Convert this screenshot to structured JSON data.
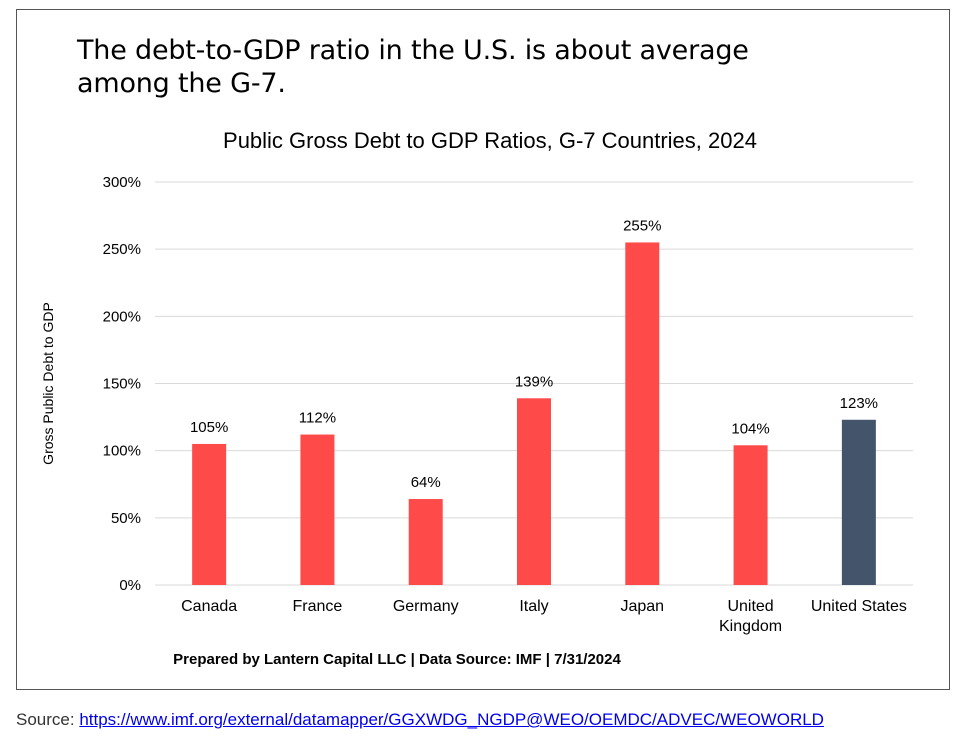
{
  "headline": "The debt-to-GDP ratio in the U.S. is about average among the G-7.",
  "footer": "Prepared by Lantern Capital LLC | Data Source: IMF | 7/31/2024",
  "source": {
    "label": "Source: ",
    "link_text": "https://www.imf.org/external/datamapper/GGXWDG_NGDP@WEO/OEMDC/ADVEC/WEOWORLD"
  },
  "chart_data": {
    "type": "bar",
    "title": "Public Gross Debt to GDP Ratios, G-7 Countries, 2024",
    "ylabel": "Gross Public Debt to GDP",
    "xlabel": "",
    "categories": [
      "Canada",
      "France",
      "Germany",
      "Italy",
      "Japan",
      "United Kingdom",
      "United States"
    ],
    "category_lines": [
      [
        "Canada"
      ],
      [
        "France"
      ],
      [
        "Germany"
      ],
      [
        "Italy"
      ],
      [
        "Japan"
      ],
      [
        "United",
        "Kingdom"
      ],
      [
        "United States"
      ]
    ],
    "values": [
      105,
      112,
      64,
      139,
      255,
      104,
      123
    ],
    "data_labels": [
      "105%",
      "112%",
      "64%",
      "139%",
      "255%",
      "104%",
      "123%"
    ],
    "ylim": [
      0,
      300
    ],
    "yticks": [
      0,
      50,
      100,
      150,
      200,
      250,
      300
    ],
    "ytick_labels": [
      "0%",
      "50%",
      "100%",
      "150%",
      "200%",
      "250%",
      "300%"
    ],
    "grid": true,
    "colors": {
      "default_bar": "#ff4a4a",
      "highlight_bar": "#44546a",
      "gridline": "#d9d9d9"
    },
    "highlight_category": "United States"
  }
}
